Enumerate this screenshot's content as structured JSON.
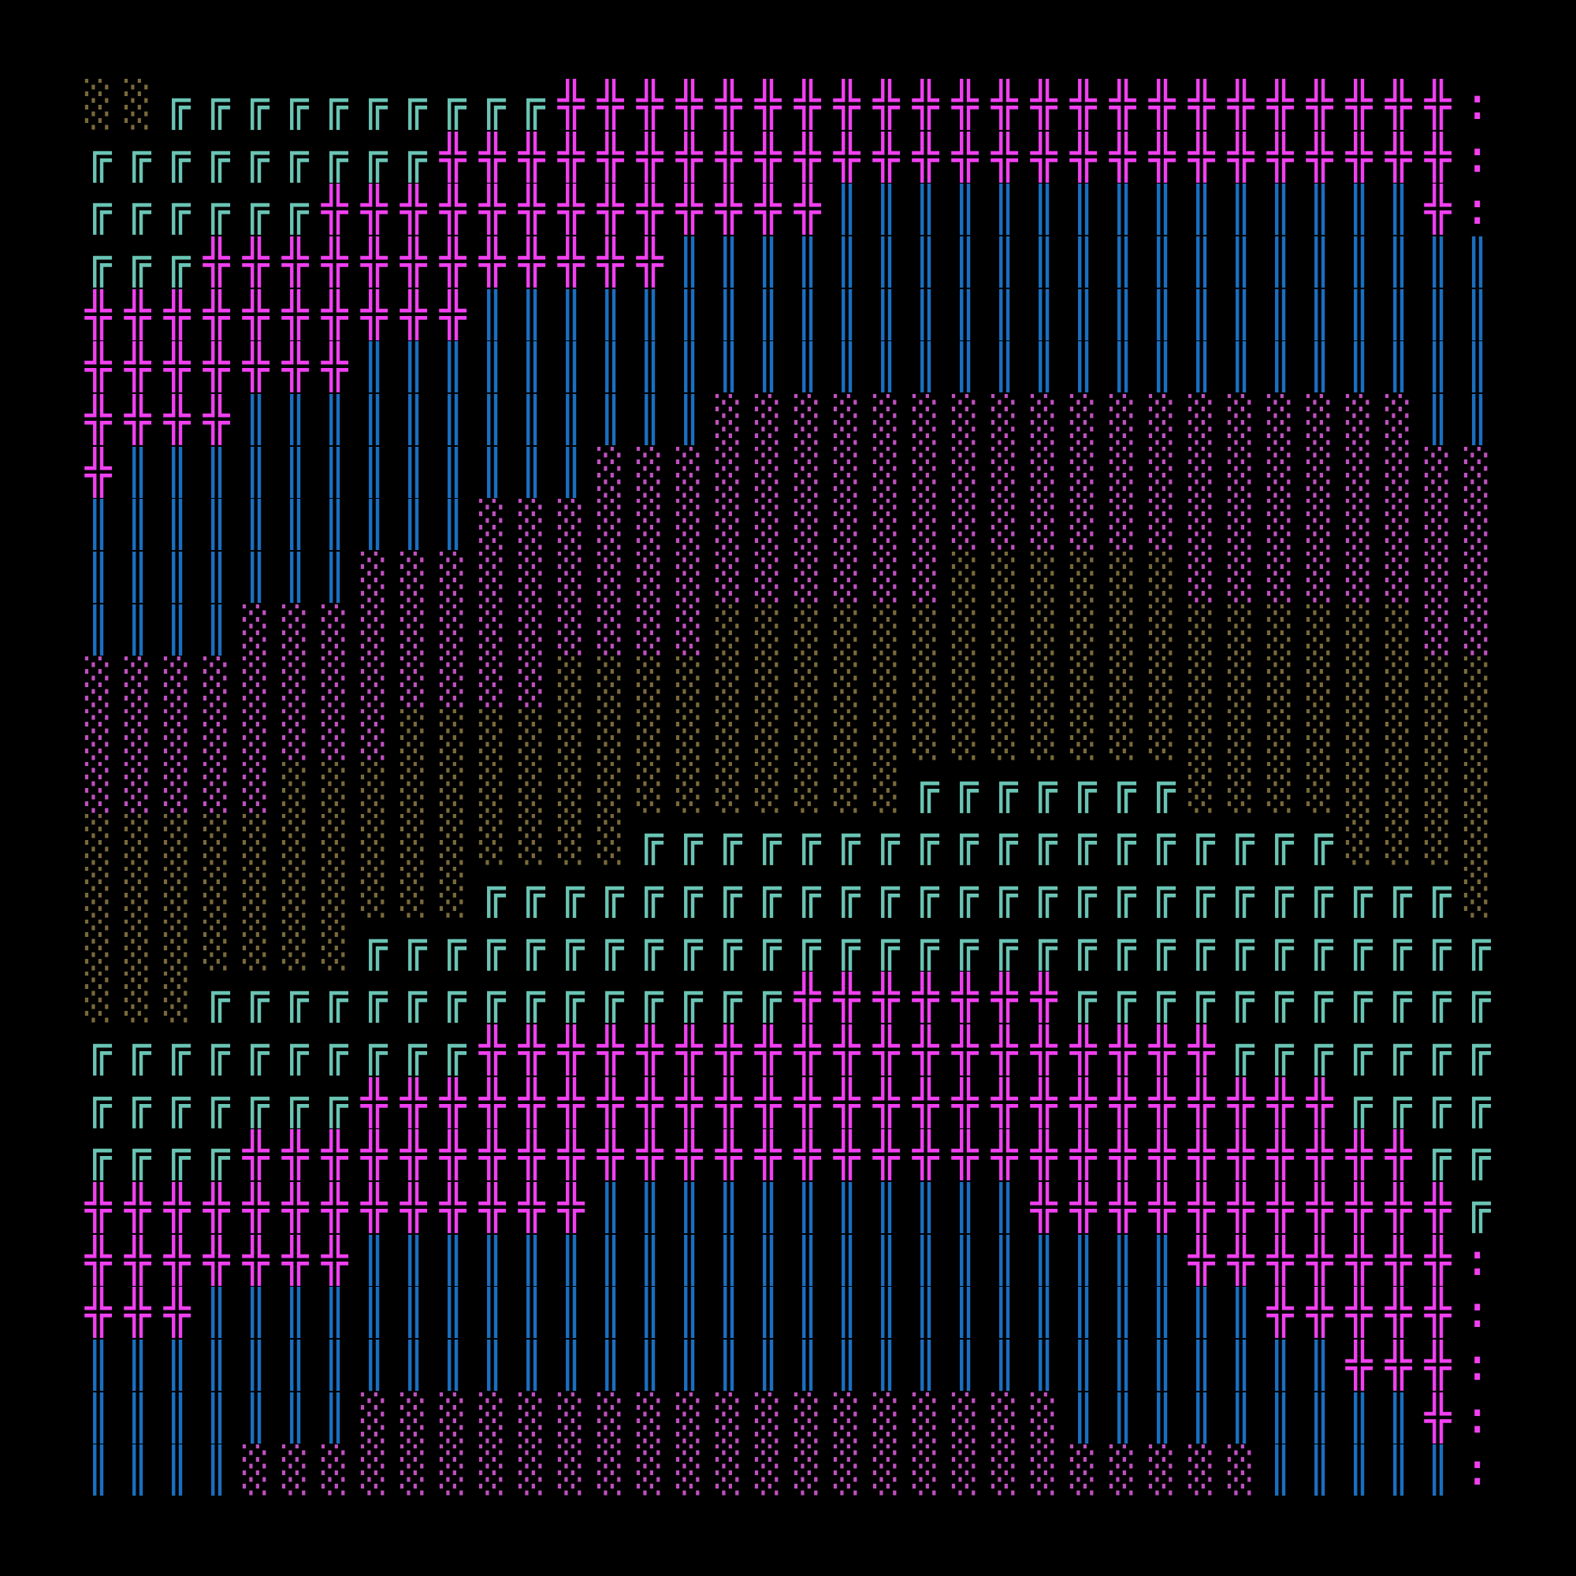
{
  "art": {
    "background": "#000000",
    "cols": 36,
    "rows": 27,
    "palette": {
      "T": {
        "char": "╔",
        "color": "#6ac4b4",
        "name": "teal-box-glyph"
      },
      "P": {
        "char": "╬",
        "color": "#f040f0",
        "name": "magenta-cross-glyph"
      },
      "B": {
        "char": "║",
        "color": "#1a6fc0",
        "name": "blue-bar-glyph"
      },
      "M": {
        "char": "░",
        "color": "#c050c0",
        "name": "magenta-dots-glyph"
      },
      "K": {
        "char": "░",
        "color": "#7a6a3a",
        "name": "khaki-dots-glyph"
      },
      "C": {
        "char": ":",
        "color": "#f040f0",
        "name": "colon-glyph"
      }
    },
    "grid": [
      "KKTTTTTTTTTTPPPPPPPPPPPPPPPPPPPPPPPC",
      "TTTTTTTTTPPPPPPPPPPPPPPPPPPPPPPPPPPC",
      "TTTTTTPPPPPPPPPPPPPBBBBBBBBBBBBBBBPC",
      "TTTPPPPPPPPPPPPBBBBBBBBBBBBBBBBBBBBB",
      "PPPPPPPPPPBBBBBBBBBBBBBBBBBBBBBBBBBB",
      "PPPPPPPBBBBBBBBBBBBBBBBBBBBBBBBBBBBB",
      "PPPPBBBBBBBBBBBBMMMMMMMMMMMMMMMMMMBB",
      "PBBBBBBBBBBBBMMMMMMMMMMMMMMMMMMMMMMM",
      "BBBBBBBBBBMMMMMMMMMMMMMMMMMMMMMMMMMM",
      "BBBBBBBMMMMMMMMMMMMMMMKKKKKKMMMMMMMM",
      "BBBBMMMMMMMMMMMMKKKKKKKKKKKKKKKKKKMM",
      "MMMMMMMMMMMMKKKKKKKKKKKKKKKKKKKKKKKK",
      "MMMMMMMMKKKKKKKKKKKKKKKKKKKKKKKKKKKK",
      "MMMMMKKKKKKKKKKKKKKKKTTTTTTTKKKKKKKK",
      "KKKKKKKKKKKKKKTTTTTTTTTTTTTTTTTTKKKK",
      "KKKKKKKKKKTTTTTTTTTTTTTTTTTTTTTTTTTK",
      "KKKKKKKTTTTTTTTTTTTTTTTTTTTTTTTTTTTT",
      "KKKTTTTTTTTTTTTTTTPPPPPPPTTTTTTTTTTT",
      "TTTTTTTTTTPPPPPPPPPPPPPPPPPPPTTTTTTT",
      "TTTTTTTPPPPPPPPPPPPPPPPPPPPPPPPPTTTT",
      "TTTTPPPPPPPPPPPPPPPPPPPPPPPPPPPPPPTT",
      "PPPPPPPPPPPPPBBBBBBBBBBBPPPPPPPPPPPT",
      "PPPPPPPBBBBBBBBBBBBBBBBBBBBBPPPPPPPC",
      "PPPBBBBBBBBBBBBBBBBBBBBBBBBBBBPPPPPC",
      "BBBBBBBBBBBBBBBBBBBBBBBBBBBBBBBBPPPC",
      "BBBBBBBMMMMMMMMMMMMMMMMMMBBBBBBBBBPC",
      "BBBBMMMMMMMMMMMMMMMMMMMMMMMMMMBBBBBC"
    ]
  }
}
